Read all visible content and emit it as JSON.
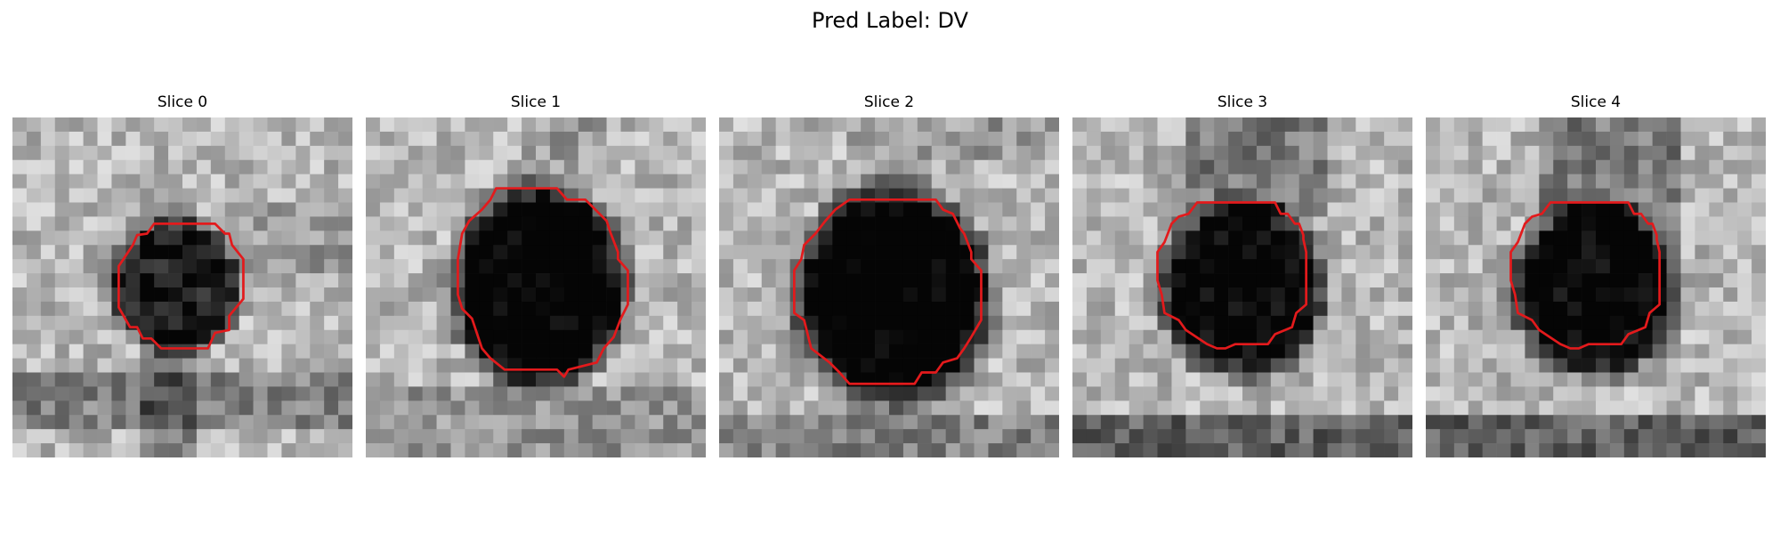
{
  "figure": {
    "suptitle": "Pred Label: DV"
  },
  "slices": [
    {
      "title": "Slice 0",
      "contour_color": "#e31a1c",
      "vesicle": {
        "cx": 11.5,
        "cy": 11.8,
        "rx": 4.3,
        "ry": 4.4,
        "darkness": 0.62
      },
      "noise_seed": 13,
      "contour": [
        [
          10.5,
          7.5
        ],
        [
          14.3,
          7.5
        ],
        [
          15.0,
          8.2
        ],
        [
          15.3,
          8.2
        ],
        [
          15.5,
          9.0
        ],
        [
          16.3,
          10.0
        ],
        [
          16.3,
          12.8
        ],
        [
          15.3,
          14.0
        ],
        [
          15.3,
          15.0
        ],
        [
          14.3,
          15.2
        ],
        [
          13.8,
          16.3
        ],
        [
          10.5,
          16.3
        ],
        [
          9.8,
          15.6
        ],
        [
          9.2,
          15.6
        ],
        [
          8.8,
          14.8
        ],
        [
          8.3,
          14.8
        ],
        [
          7.5,
          13.4
        ],
        [
          7.5,
          10.5
        ],
        [
          8.5,
          9.0
        ],
        [
          8.8,
          8.3
        ],
        [
          9.5,
          8.2
        ],
        [
          10.0,
          7.5
        ]
      ]
    },
    {
      "title": "Slice 1",
      "contour_color": "#e31a1c",
      "vesicle": {
        "cx": 12.3,
        "cy": 11.9,
        "rx": 5.6,
        "ry": 6.6,
        "darkness": 0.78
      },
      "noise_seed": 29,
      "contour": [
        [
          9.2,
          5.0
        ],
        [
          13.5,
          5.0
        ],
        [
          14.2,
          5.8
        ],
        [
          15.5,
          5.8
        ],
        [
          16.2,
          6.5
        ],
        [
          17.0,
          7.3
        ],
        [
          17.3,
          8.2
        ],
        [
          17.8,
          9.5
        ],
        [
          17.8,
          10.0
        ],
        [
          18.5,
          10.8
        ],
        [
          18.5,
          13.2
        ],
        [
          18.0,
          14.2
        ],
        [
          17.5,
          15.5
        ],
        [
          16.8,
          16.3
        ],
        [
          16.3,
          17.3
        ],
        [
          14.3,
          17.8
        ],
        [
          14.0,
          18.3
        ],
        [
          13.5,
          17.8
        ],
        [
          9.8,
          17.8
        ],
        [
          8.8,
          17.0
        ],
        [
          8.2,
          16.3
        ],
        [
          7.5,
          14.2
        ],
        [
          6.8,
          13.5
        ],
        [
          6.5,
          12.5
        ],
        [
          6.5,
          10.0
        ],
        [
          6.8,
          8.2
        ],
        [
          7.3,
          7.3
        ],
        [
          8.2,
          6.5
        ],
        [
          8.8,
          5.8
        ]
      ]
    },
    {
      "title": "Slice 2",
      "contour_color": "#e31a1c",
      "vesicle": {
        "cx": 12.3,
        "cy": 12.6,
        "rx": 6.3,
        "ry": 7.1,
        "darkness": 0.8
      },
      "noise_seed": 41,
      "contour": [
        [
          9.2,
          5.8
        ],
        [
          15.3,
          5.8
        ],
        [
          15.8,
          6.5
        ],
        [
          16.5,
          6.8
        ],
        [
          17.0,
          7.8
        ],
        [
          17.3,
          8.2
        ],
        [
          17.8,
          9.5
        ],
        [
          17.8,
          10.0
        ],
        [
          18.5,
          10.8
        ],
        [
          18.5,
          14.3
        ],
        [
          17.8,
          15.5
        ],
        [
          17.3,
          16.3
        ],
        [
          16.8,
          17.0
        ],
        [
          15.8,
          17.3
        ],
        [
          15.3,
          18.0
        ],
        [
          14.3,
          18.0
        ],
        [
          13.8,
          18.8
        ],
        [
          9.2,
          18.8
        ],
        [
          8.5,
          18.0
        ],
        [
          7.8,
          17.3
        ],
        [
          6.5,
          16.3
        ],
        [
          6.0,
          14.3
        ],
        [
          5.3,
          13.8
        ],
        [
          5.3,
          10.8
        ],
        [
          5.8,
          10.0
        ],
        [
          6.0,
          9.0
        ],
        [
          6.8,
          8.2
        ],
        [
          7.5,
          7.3
        ],
        [
          8.2,
          6.5
        ]
      ]
    },
    {
      "title": "Slice 3",
      "contour_color": "#e31a1c",
      "vesicle": {
        "cx": 12.0,
        "cy": 12.1,
        "rx": 5.4,
        "ry": 5.6,
        "darkness": 0.74
      },
      "noise_seed": 57,
      "contour": [
        [
          9.5,
          6.0
        ],
        [
          14.3,
          6.0
        ],
        [
          14.7,
          6.8
        ],
        [
          15.2,
          6.8
        ],
        [
          15.7,
          7.5
        ],
        [
          16.0,
          7.5
        ],
        [
          16.3,
          8.3
        ],
        [
          16.3,
          8.6
        ],
        [
          16.5,
          9.5
        ],
        [
          16.5,
          13.2
        ],
        [
          15.8,
          13.8
        ],
        [
          15.5,
          14.8
        ],
        [
          14.3,
          15.3
        ],
        [
          13.8,
          16.0
        ],
        [
          11.5,
          16.0
        ],
        [
          10.8,
          16.3
        ],
        [
          10.2,
          16.3
        ],
        [
          9.5,
          16.0
        ],
        [
          8.0,
          15.0
        ],
        [
          7.5,
          14.3
        ],
        [
          6.5,
          13.8
        ],
        [
          6.3,
          12.5
        ],
        [
          6.0,
          11.5
        ],
        [
          6.0,
          9.5
        ],
        [
          6.5,
          8.8
        ],
        [
          7.0,
          7.5
        ],
        [
          7.5,
          7.0
        ],
        [
          8.2,
          6.8
        ],
        [
          8.8,
          6.0
        ]
      ]
    },
    {
      "title": "Slice 4",
      "contour_color": "#e31a1c",
      "vesicle": {
        "cx": 12.0,
        "cy": 12.1,
        "rx": 5.4,
        "ry": 5.6,
        "darkness": 0.74
      },
      "noise_seed": 71,
      "contour": [
        [
          9.5,
          6.0
        ],
        [
          14.3,
          6.0
        ],
        [
          14.7,
          6.8
        ],
        [
          15.2,
          6.8
        ],
        [
          15.7,
          7.5
        ],
        [
          16.0,
          7.5
        ],
        [
          16.3,
          8.3
        ],
        [
          16.3,
          8.6
        ],
        [
          16.5,
          9.5
        ],
        [
          16.5,
          13.2
        ],
        [
          15.8,
          13.8
        ],
        [
          15.5,
          14.8
        ],
        [
          14.3,
          15.3
        ],
        [
          13.8,
          16.0
        ],
        [
          11.5,
          16.0
        ],
        [
          10.8,
          16.3
        ],
        [
          10.2,
          16.3
        ],
        [
          9.5,
          16.0
        ],
        [
          8.0,
          15.0
        ],
        [
          7.5,
          14.3
        ],
        [
          6.5,
          13.8
        ],
        [
          6.3,
          12.5
        ],
        [
          6.0,
          11.5
        ],
        [
          6.0,
          9.5
        ],
        [
          6.5,
          8.8
        ],
        [
          7.0,
          7.5
        ],
        [
          7.5,
          7.0
        ],
        [
          8.2,
          6.8
        ],
        [
          8.8,
          6.0
        ]
      ]
    }
  ]
}
